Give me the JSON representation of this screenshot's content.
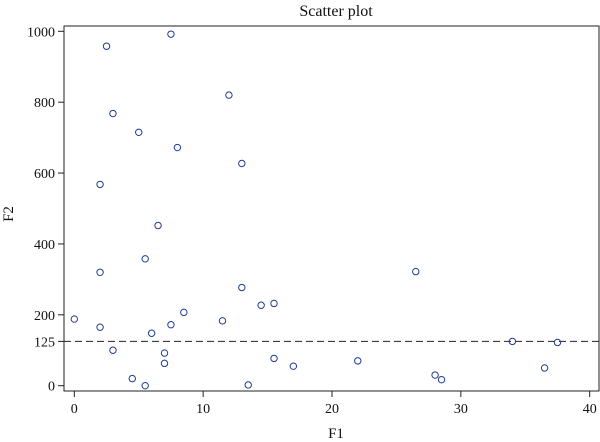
{
  "chart_data": {
    "type": "scatter",
    "title": "Scatter plot",
    "xlabel": "F1",
    "ylabel": "F2",
    "xlim": [
      -0.8,
      40.8
    ],
    "ylim": [
      -15,
      1015
    ],
    "xticks": [
      0,
      10,
      20,
      30,
      40
    ],
    "yticks": [
      0,
      125,
      200,
      400,
      600,
      800,
      1000
    ],
    "reference_line": {
      "y": 125,
      "style": "dashed"
    },
    "grid": false,
    "marker_color": "#1f3c99",
    "series": [
      {
        "points": [
          {
            "x": 0,
            "y": 188
          },
          {
            "x": 2,
            "y": 568
          },
          {
            "x": 2,
            "y": 320
          },
          {
            "x": 2,
            "y": 165
          },
          {
            "x": 2.5,
            "y": 958
          },
          {
            "x": 3,
            "y": 768
          },
          {
            "x": 3,
            "y": 100
          },
          {
            "x": 4.5,
            "y": 20
          },
          {
            "x": 5,
            "y": 715
          },
          {
            "x": 5.5,
            "y": 358
          },
          {
            "x": 5.5,
            "y": 0
          },
          {
            "x": 6,
            "y": 148
          },
          {
            "x": 6.5,
            "y": 452
          },
          {
            "x": 7,
            "y": 92
          },
          {
            "x": 7,
            "y": 63
          },
          {
            "x": 7.5,
            "y": 992
          },
          {
            "x": 7.5,
            "y": 172
          },
          {
            "x": 8,
            "y": 672
          },
          {
            "x": 8.5,
            "y": 207
          },
          {
            "x": 11.5,
            "y": 183
          },
          {
            "x": 12,
            "y": 820
          },
          {
            "x": 13,
            "y": 627
          },
          {
            "x": 13,
            "y": 277
          },
          {
            "x": 13.5,
            "y": 2
          },
          {
            "x": 14.5,
            "y": 227
          },
          {
            "x": 15.5,
            "y": 232
          },
          {
            "x": 15.5,
            "y": 77
          },
          {
            "x": 17,
            "y": 55
          },
          {
            "x": 22,
            "y": 70
          },
          {
            "x": 26.5,
            "y": 322
          },
          {
            "x": 28,
            "y": 30
          },
          {
            "x": 28.5,
            "y": 17
          },
          {
            "x": 34,
            "y": 125
          },
          {
            "x": 36.5,
            "y": 50
          },
          {
            "x": 37.5,
            "y": 122
          }
        ]
      }
    ]
  }
}
